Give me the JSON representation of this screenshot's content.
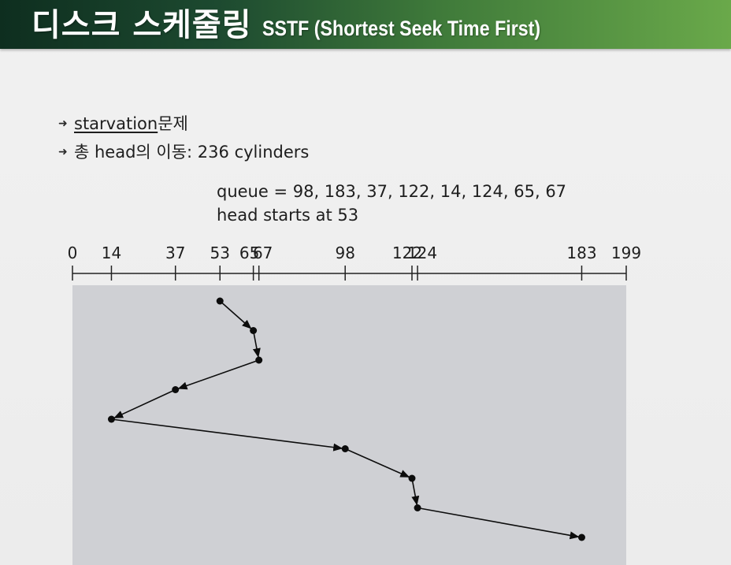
{
  "title": {
    "main": "디스크 스케줄링",
    "sub": "SSTF (Shortest Seek Time First)"
  },
  "bullets": [
    {
      "underlined": "starvation",
      "rest": " 문제"
    },
    {
      "text": "총 head의 이동: 236 cylinders"
    }
  ],
  "queue_text": "queue = 98, 183, 37, 122, 14, 124, 65, 67",
  "head_text": "head starts at 53",
  "chart_data": {
    "type": "line",
    "axis_range": [
      0,
      199
    ],
    "tick_labels": [
      "0",
      "14",
      "37",
      "53",
      "65",
      "67",
      "98",
      "122",
      "124",
      "183",
      "199"
    ],
    "ticks": [
      0,
      14,
      37,
      53,
      65,
      67,
      98,
      122,
      124,
      183,
      199
    ],
    "service_order": [
      53,
      65,
      67,
      37,
      14,
      98,
      122,
      124,
      183
    ],
    "colors": {
      "plot_bg": "#cfd0d4",
      "line": "#0c0c0c",
      "axis": "#222222"
    }
  }
}
